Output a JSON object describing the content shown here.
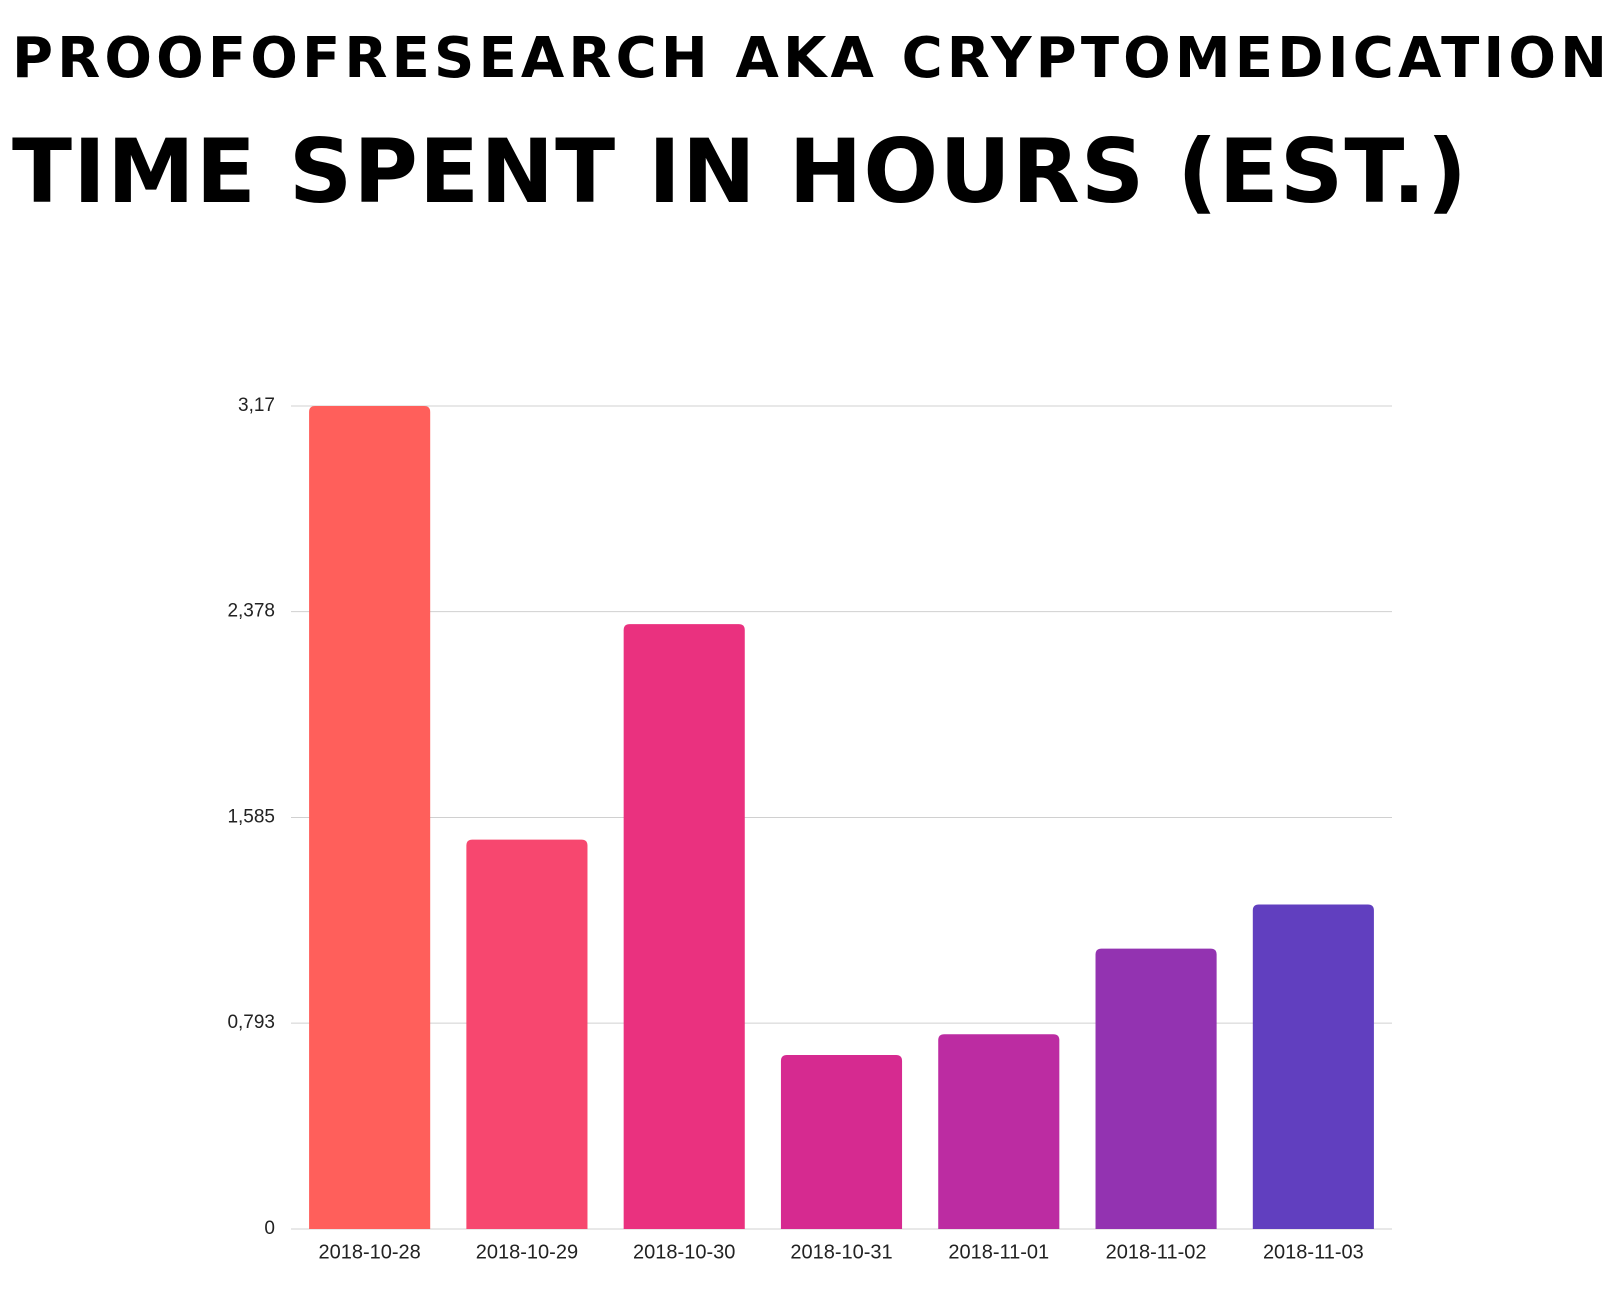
{
  "chart_data": {
    "type": "bar",
    "title": "PROOFOFRESEARCH AKA CRYPTOMEDICATION",
    "subtitle": "TIME SPENT IN HOURS (EST.)",
    "categories": [
      "2018-10-28",
      "2018-10-29",
      "2018-10-30",
      "2018-10-31",
      "2018-11-01",
      "2018-11-02",
      "2018-11-03"
    ],
    "values": [
      3.17,
      1.5,
      2.33,
      0.67,
      0.75,
      1.08,
      1.25
    ],
    "colors": [
      "#ff5f5b",
      "#f7476f",
      "#ea317f",
      "#d62a90",
      "#bc2ca2",
      "#9333b1",
      "#613fbf"
    ],
    "ylim": [
      0,
      3.17
    ],
    "yticks": [
      0,
      {
        "value": 0.793,
        "label": "0,793"
      },
      {
        "value": 1.585,
        "label": "1,585"
      },
      {
        "value": 2.378,
        "label": "2,378"
      },
      {
        "value": 3.17,
        "label": "3,17"
      }
    ],
    "grid": true
  }
}
